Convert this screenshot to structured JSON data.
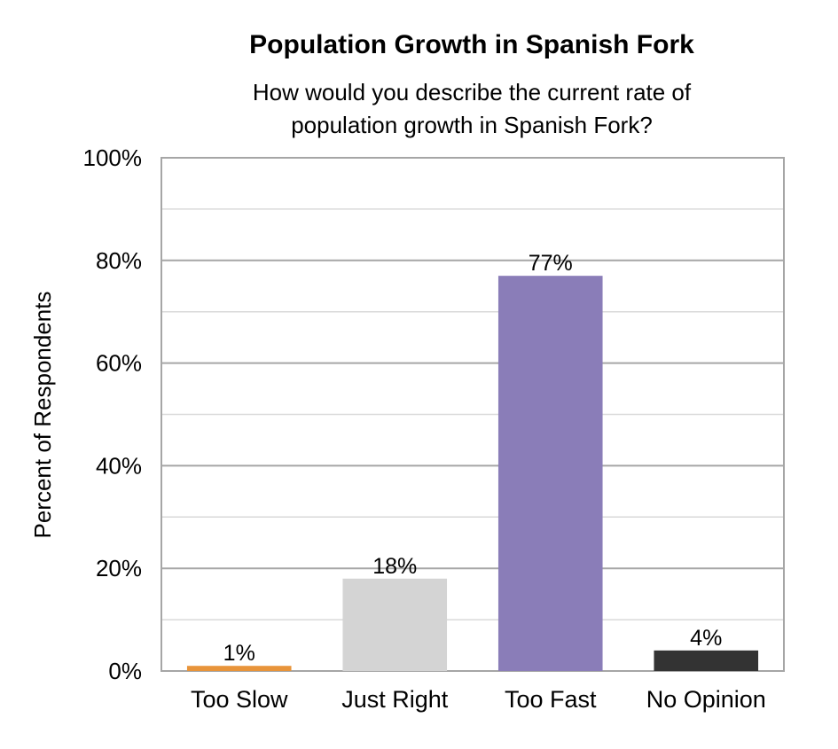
{
  "chart_data": {
    "type": "bar",
    "title": "Population Growth in Spanish Fork",
    "subtitle_lines": [
      "How would you describe the current rate of",
      "population growth in Spanish Fork?"
    ],
    "ylabel": "Percent of Respondents",
    "xlabel": "",
    "categories": [
      "Too Slow",
      "Just Right",
      "Too Fast",
      "No Opinion"
    ],
    "values": [
      1,
      18,
      77,
      4
    ],
    "data_labels": [
      "1%",
      "18%",
      "77%",
      "4%"
    ],
    "colors": [
      "#E8943A",
      "#D4D4D4",
      "#8A7DB8",
      "#333333"
    ],
    "ylim": [
      0,
      100
    ],
    "major_ticks": [
      0,
      20,
      40,
      60,
      80,
      100
    ],
    "tick_labels": [
      "0%",
      "20%",
      "40%",
      "60%",
      "80%",
      "100%"
    ],
    "minor_gridlines": [
      10,
      30,
      50,
      70,
      90
    ],
    "grid": true,
    "legend": "none"
  }
}
